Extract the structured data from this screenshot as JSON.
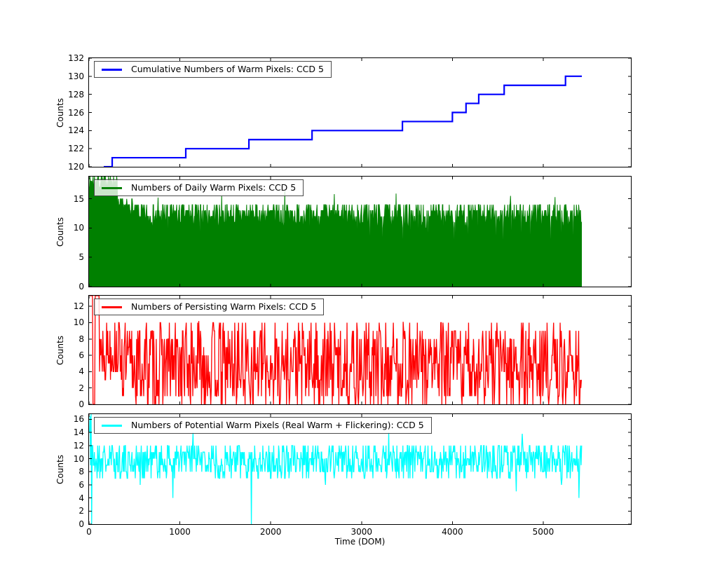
{
  "figure": {
    "background": "#ffffff",
    "frame_color": "#000000"
  },
  "chart_data": {
    "type": "line",
    "title": "",
    "y_label": "Counts",
    "x_axis": {
      "label": "Time (DOM)",
      "lim": [
        0,
        5965
      ],
      "ticks": [
        0,
        1000,
        2000,
        3000,
        4000,
        5000
      ],
      "grid": false
    },
    "legend_position": "upper left",
    "panels": [
      {
        "name": "cumulative-warm-pixels",
        "legend": "Cumulative Numbers of Warm Pixels: CCD 5",
        "color": "#0000ff",
        "style": "step",
        "line_width": 2.2,
        "ylim": [
          120,
          132
        ],
        "yticks": [
          120,
          122,
          124,
          126,
          128,
          130,
          132
        ],
        "steps": [
          [
            162,
            120
          ],
          [
            255,
            121
          ],
          [
            1065,
            122
          ],
          [
            1760,
            123
          ],
          [
            2455,
            124
          ],
          [
            3450,
            125
          ],
          [
            4000,
            126
          ],
          [
            4150,
            127
          ],
          [
            4290,
            128
          ],
          [
            4570,
            129
          ],
          [
            5245,
            130
          ],
          [
            5425,
            130
          ]
        ]
      },
      {
        "name": "daily-warm-pixels",
        "legend": "Numbers of Daily Warm Pixels: CCD 5",
        "color": "#008000",
        "style": "fill",
        "line_width": 1,
        "ylim": [
          0,
          18.8
        ],
        "yticks": [
          0,
          5,
          10,
          15
        ],
        "synth": {
          "seed": 7,
          "dt": 5,
          "segments": [
            {
              "range": [
                0,
                310
              ],
              "mean": 18.0,
              "spread": 1.2,
              "min": 15.5,
              "max": 18.8
            },
            {
              "range": [
                310,
                480
              ],
              "mean": 13.5,
              "spread": 1.5,
              "min": 11.5,
              "max": 15.5
            },
            {
              "range": [
                480,
                5425
              ],
              "mean": 12.1,
              "spread": 2.3,
              "min": 10,
              "max": 14.8
            }
          ],
          "events": [
            [
              760,
              15.2
            ],
            [
              1460,
              15.6
            ],
            [
              2154,
              16.3
            ],
            [
              2700,
              15.8
            ],
            [
              3380,
              15.9
            ],
            [
              4640,
              15.5
            ],
            [
              5130,
              15.3
            ]
          ],
          "zeros": [
            870,
            1220,
            2430,
            2950,
            3090,
            3230,
            3450,
            3540,
            3620,
            3730,
            3900,
            4015,
            4030,
            4170,
            4280,
            4480,
            4560,
            4650,
            4760,
            4860,
            5080,
            5200,
            5330
          ]
        }
      },
      {
        "name": "persisting-warm-pixels",
        "legend": "Numbers of Persisting Warm Pixels: CCD 5",
        "color": "#ff0000",
        "style": "line",
        "line_width": 1.3,
        "ylim": [
          0,
          13.3
        ],
        "yticks": [
          0,
          2,
          4,
          6,
          8,
          10,
          12
        ],
        "synth": {
          "seed": 13,
          "dt": 6,
          "segments": [
            {
              "range": [
                8,
                40
              ],
              "mean": 13.3,
              "spread": 0,
              "min": 13.3,
              "max": 13.3
            },
            {
              "range": [
                40,
                65
              ],
              "mean": 0,
              "spread": 0,
              "min": 0,
              "max": 0
            },
            {
              "range": [
                65,
                115
              ],
              "mean": 13.3,
              "spread": 0,
              "min": 13.3,
              "max": 13.3
            },
            {
              "range": [
                115,
                360
              ],
              "mean": 7,
              "spread": 4,
              "min": 1,
              "max": 10
            },
            {
              "range": [
                360,
                5425
              ],
              "mean": 4.8,
              "spread": 5.4,
              "min": 0,
              "max": 10
            }
          ],
          "events": [
            [
              1205,
              10.2
            ],
            [
              3460,
              10.1
            ]
          ],
          "zeros": []
        }
      },
      {
        "name": "potential-warm-pixels",
        "legend": "Numbers of Potential Warm Pixels (Real Warm + Flickering): CCD 5",
        "color": "#00ffff",
        "style": "line",
        "line_width": 1.3,
        "ylim": [
          0,
          16.8
        ],
        "yticks": [
          0,
          2,
          4,
          6,
          8,
          10,
          12,
          14,
          16
        ],
        "synth": {
          "seed": 21,
          "dt": 6,
          "segments": [
            {
              "range": [
                5,
                28
              ],
              "mean": 14.5,
              "spread": 2.5,
              "min": 10,
              "max": 16.8
            },
            {
              "range": [
                28,
                5425
              ],
              "mean": 9.7,
              "spread": 2.8,
              "min": 5,
              "max": 13
            }
          ],
          "events": [
            [
              8,
              16.5
            ],
            [
              14,
              9
            ],
            [
              22,
              16.8
            ],
            [
              28,
              0
            ],
            [
              560,
              6
            ],
            [
              925,
              4
            ],
            [
              1143,
              14
            ],
            [
              1784,
              0
            ],
            [
              2600,
              6
            ],
            [
              3300,
              14
            ],
            [
              4700,
              5
            ],
            [
              4770,
              13.8
            ],
            [
              5200,
              6
            ],
            [
              5390,
              4
            ]
          ],
          "zeros": []
        }
      }
    ]
  }
}
